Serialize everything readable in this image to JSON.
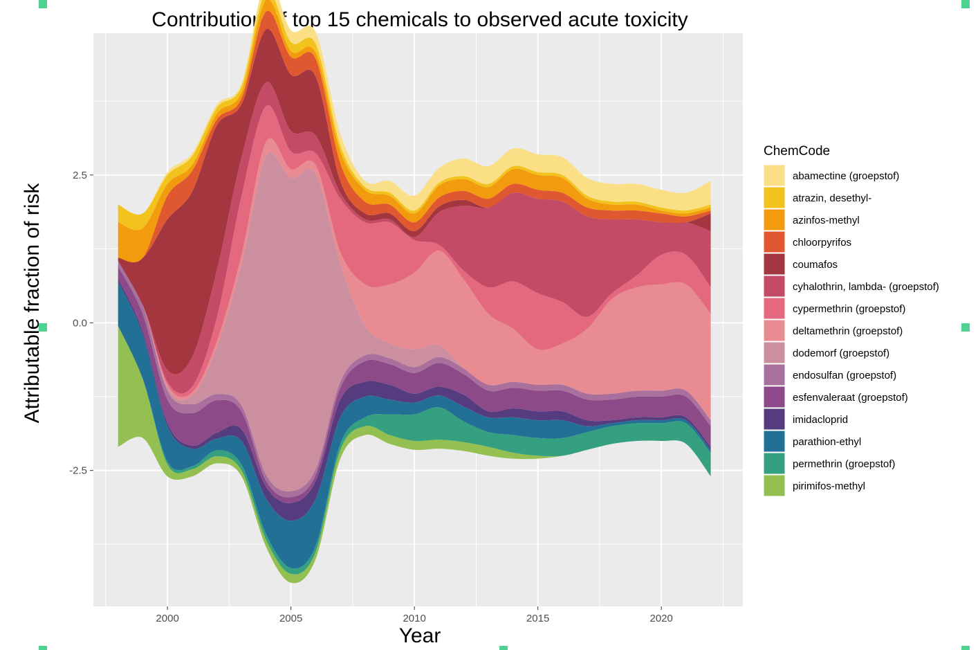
{
  "chart_data": {
    "type": "area",
    "subtype": "streamgraph",
    "title": "Contribution of top 15 chemicals to observed acute toxicity",
    "xlabel": "Year",
    "ylabel": "Attributable fraction of risk",
    "xlim": [
      1997,
      2023.3
    ],
    "ylim": [
      -4.8,
      4.9
    ],
    "x_ticks": [
      2000,
      2005,
      2010,
      2015,
      2020
    ],
    "y_ticks": [
      -2.5,
      0.0,
      2.5
    ],
    "y_tick_labels": [
      "-2.5",
      "0.0",
      "2.5"
    ],
    "legend": {
      "title": "ChemCode",
      "position": "right"
    },
    "x": [
      1998,
      1999,
      2000,
      2001,
      2002,
      2003,
      2004,
      2005,
      2006,
      2007,
      2008,
      2009,
      2010,
      2011,
      2012,
      2013,
      2014,
      2015,
      2016,
      2017,
      2018,
      2019,
      2020,
      2021,
      2022
    ],
    "bottom": [
      -2.1,
      -1.95,
      -2.6,
      -2.6,
      -2.38,
      -2.6,
      -3.8,
      -4.4,
      -4.0,
      -2.3,
      -1.9,
      -2.05,
      -2.15,
      -2.13,
      -2.17,
      -2.25,
      -2.3,
      -2.3,
      -2.25,
      -2.15,
      -2.05,
      -2.0,
      -2.0,
      -2.05,
      -2.6
    ],
    "series": [
      {
        "name": "pirimifos-methyl",
        "color": "#93c051",
        "values": [
          2.05,
          1.0,
          0.2,
          0.12,
          0.12,
          0.1,
          0.12,
          0.15,
          0.12,
          0.15,
          0.15,
          0.15,
          0.15,
          0.15,
          0.15,
          0.15,
          0.1,
          0.05,
          0.0,
          0.0,
          0.0,
          0.0,
          0.0,
          0.0,
          0.0
        ]
      },
      {
        "name": "permethrin (groepstof)",
        "color": "#35a07f",
        "values": [
          0.0,
          0.0,
          0.05,
          0.05,
          0.1,
          0.1,
          0.1,
          0.1,
          0.1,
          0.1,
          0.15,
          0.35,
          0.45,
          0.55,
          0.35,
          0.25,
          0.3,
          0.3,
          0.3,
          0.3,
          0.3,
          0.3,
          0.3,
          0.35,
          0.4
        ]
      },
      {
        "name": "parathion-ethyl",
        "color": "#227096",
        "values": [
          0.75,
          0.75,
          0.6,
          0.3,
          0.2,
          0.4,
          0.6,
          0.8,
          0.8,
          0.45,
          0.35,
          0.25,
          0.2,
          0.2,
          0.25,
          0.25,
          0.3,
          0.3,
          0.3,
          0.1,
          0.05,
          0.05,
          0.05,
          0.05,
          0.05
        ]
      },
      {
        "name": "imidacloprid",
        "color": "#553c7e",
        "values": [
          0.05,
          0.05,
          0.05,
          0.05,
          0.1,
          0.2,
          0.2,
          0.3,
          0.3,
          0.3,
          0.25,
          0.25,
          0.15,
          0.15,
          0.2,
          0.1,
          0.15,
          0.15,
          0.15,
          0.1,
          0.05,
          0.05,
          0.05,
          0.05,
          0.05
        ]
      },
      {
        "name": "esfenvaleraat (groepstof)",
        "color": "#8c4b88",
        "values": [
          0.2,
          0.3,
          0.4,
          0.55,
          0.55,
          0.3,
          0.1,
          0.1,
          0.1,
          0.2,
          0.35,
          0.35,
          0.35,
          0.4,
          0.35,
          0.35,
          0.35,
          0.35,
          0.35,
          0.35,
          0.35,
          0.35,
          0.35,
          0.35,
          0.35
        ]
      },
      {
        "name": "endosulfan (groepstof)",
        "color": "#a9709d",
        "values": [
          0.1,
          0.15,
          0.15,
          0.15,
          0.1,
          0.1,
          0.1,
          0.1,
          0.1,
          0.1,
          0.1,
          0.1,
          0.1,
          0.1,
          0.1,
          0.1,
          0.1,
          0.1,
          0.1,
          0.1,
          0.1,
          0.1,
          0.1,
          0.1,
          0.1
        ]
      },
      {
        "name": "dodemorf (groepstof)",
        "color": "#cb8fa0",
        "values": [
          0.0,
          0.0,
          0.05,
          0.15,
          0.8,
          2.4,
          5.4,
          5.3,
          5.0,
          2.0,
          0.5,
          0.25,
          0.3,
          0.2,
          0.0,
          0.0,
          0.0,
          0.0,
          0.0,
          0.0,
          0.0,
          0.0,
          0.0,
          0.0,
          0.0
        ]
      },
      {
        "name": "deltamethrin (groepstof)",
        "color": "#e98c92",
        "values": [
          0.0,
          0.0,
          0.05,
          0.05,
          0.1,
          0.15,
          0.25,
          0.15,
          0.15,
          0.2,
          0.7,
          1.0,
          1.3,
          1.6,
          1.5,
          1.2,
          0.9,
          0.6,
          0.7,
          1.1,
          1.6,
          1.75,
          1.8,
          1.8,
          1.8
        ]
      },
      {
        "name": "cypermethrin (groepstof)",
        "color": "#e4687e",
        "values": [
          0.0,
          0.0,
          0.05,
          0.1,
          0.4,
          1.0,
          0.6,
          0.3,
          0.2,
          0.9,
          1.05,
          1.05,
          0.55,
          0.1,
          0.15,
          0.45,
          0.8,
          0.95,
          0.7,
          0.2,
          0.1,
          0.2,
          0.5,
          0.5,
          0.45
        ]
      },
      {
        "name": "cyhalothrin, lambda- (groepstof)",
        "color": "#c34b66",
        "values": [
          0.0,
          0.0,
          0.2,
          0.5,
          0.8,
          0.65,
          0.4,
          0.35,
          0.3,
          0.1,
          0.05,
          0.05,
          0.05,
          0.55,
          1.1,
          1.35,
          1.5,
          1.6,
          1.7,
          1.7,
          1.25,
          0.95,
          0.55,
          0.55,
          0.95
        ]
      },
      {
        "name": "coumafos",
        "color": "#a3363e",
        "values": [
          0.05,
          0.8,
          2.55,
          2.8,
          2.45,
          0.9,
          0.9,
          0.95,
          1.0,
          0.2,
          0.1,
          0.1,
          0.1,
          0.1,
          0.1,
          0.0,
          0.0,
          0.0,
          0.0,
          0.0,
          0.0,
          0.0,
          0.0,
          0.0,
          0.3
        ]
      },
      {
        "name": "chloorpyrifos",
        "color": "#e05830",
        "values": [
          0.0,
          0.0,
          0.4,
          0.35,
          0.1,
          0.1,
          0.3,
          0.3,
          0.3,
          0.3,
          0.2,
          0.15,
          0.15,
          0.15,
          0.15,
          0.15,
          0.15,
          0.15,
          0.15,
          0.15,
          0.15,
          0.15,
          0.15,
          0.1,
          0.05
        ]
      },
      {
        "name": "azinfos-methyl",
        "color": "#f39b0f",
        "values": [
          0.6,
          0.5,
          0.2,
          0.1,
          0.1,
          0.1,
          0.2,
          0.1,
          0.1,
          0.2,
          0.2,
          0.15,
          0.15,
          0.2,
          0.2,
          0.2,
          0.25,
          0.25,
          0.25,
          0.15,
          0.1,
          0.1,
          0.05,
          0.05,
          0.05
        ]
      },
      {
        "name": "atrazin, desethyl-",
        "color": "#f2c31d",
        "values": [
          0.3,
          0.25,
          0.15,
          0.15,
          0.1,
          0.1,
          0.15,
          0.15,
          0.15,
          0.1,
          0.05,
          0.05,
          0.05,
          0.05,
          0.05,
          0.05,
          0.05,
          0.05,
          0.05,
          0.05,
          0.05,
          0.05,
          0.05,
          0.05,
          0.05
        ]
      },
      {
        "name": "abamectine (groepstof)",
        "color": "#fbdf86",
        "values": [
          0.0,
          0.0,
          0.05,
          0.05,
          0.05,
          0.05,
          0.2,
          0.2,
          0.2,
          0.2,
          0.1,
          0.2,
          0.25,
          0.25,
          0.3,
          0.3,
          0.3,
          0.3,
          0.3,
          0.3,
          0.3,
          0.3,
          0.3,
          0.3,
          0.4
        ]
      }
    ]
  }
}
